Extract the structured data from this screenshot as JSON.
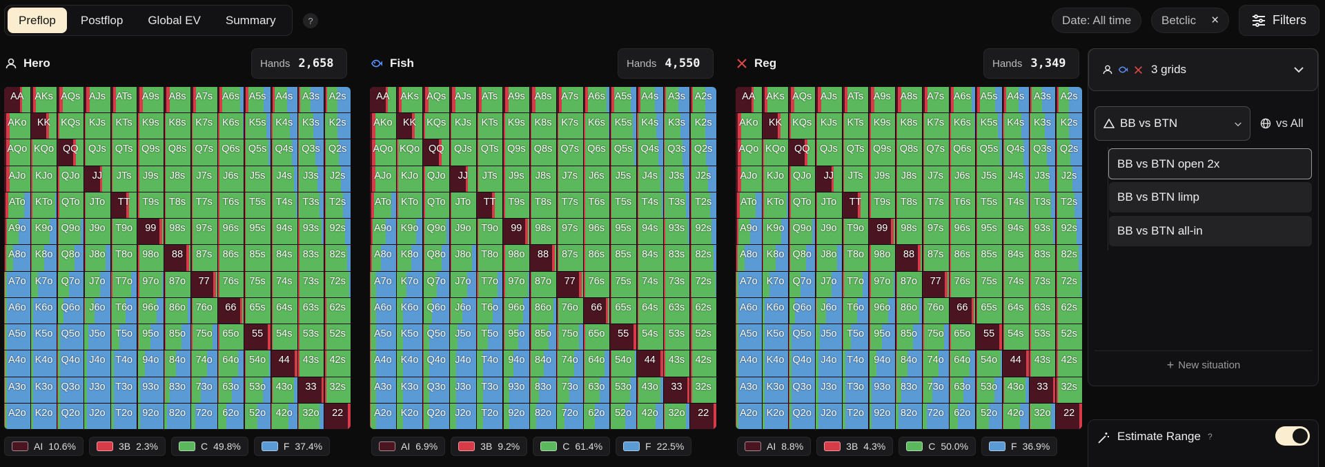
{
  "tabs": [
    "Preflop",
    "Postflop",
    "Global EV",
    "Summary"
  ],
  "active_tab": 0,
  "help_label": "?",
  "header": {
    "date_chip": "Date: All time",
    "site_chip": "Betclic",
    "site_clear": "×",
    "filters_label": "Filters"
  },
  "players": [
    {
      "name": "Hero",
      "icon": "user-icon",
      "hands_label": "Hands",
      "hands": "2,658",
      "legend": [
        {
          "code": "AI",
          "pct": "10.6%"
        },
        {
          "code": "3B",
          "pct": "2.3%"
        },
        {
          "code": "C",
          "pct": "49.8%"
        },
        {
          "code": "F",
          "pct": "37.4%"
        }
      ]
    },
    {
      "name": "Fish",
      "icon": "fish-icon",
      "hands_label": "Hands",
      "hands": "4,550",
      "legend": [
        {
          "code": "AI",
          "pct": "6.9%"
        },
        {
          "code": "3B",
          "pct": "9.2%"
        },
        {
          "code": "C",
          "pct": "61.4%"
        },
        {
          "code": "F",
          "pct": "22.5%"
        }
      ]
    },
    {
      "name": "Reg",
      "icon": "crossed-swords-icon",
      "hands_label": "Hands",
      "hands": "3,349",
      "legend": [
        {
          "code": "AI",
          "pct": "8.8%"
        },
        {
          "code": "3B",
          "pct": "4.3%"
        },
        {
          "code": "C",
          "pct": "50.0%"
        },
        {
          "code": "F",
          "pct": "36.9%"
        }
      ]
    }
  ],
  "colors": {
    "AI": "#4a1420",
    "3B": "#d83b48",
    "C": "#5cb85c",
    "F": "#5b9bd5",
    "accent": "#fbeed0"
  },
  "side": {
    "grids_label": "3 grids",
    "situation": "BB vs BTN",
    "vs_all": "vs All",
    "options": [
      "BB vs BTN open 2x",
      "BB vs BTN limp",
      "BB vs BTN all-in"
    ],
    "new_situation": "New situation",
    "estimate_range": "Estimate Range",
    "estimate_help": "?",
    "estimate_on": true
  }
}
